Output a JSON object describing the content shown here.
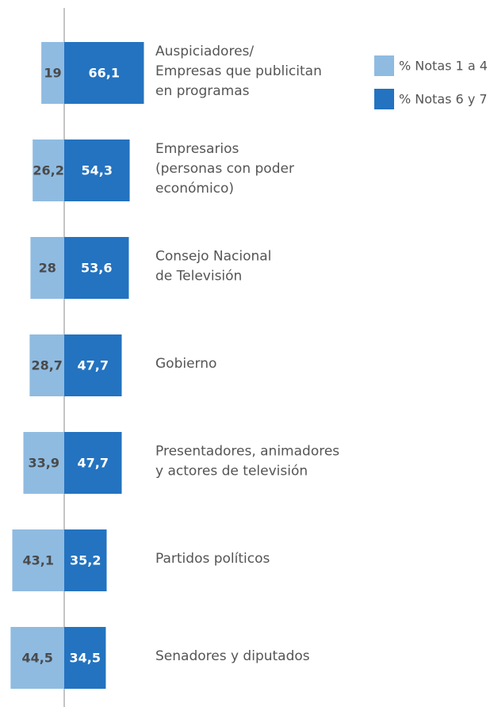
{
  "chart_data": {
    "type": "diverging-bar",
    "categories": [
      [
        "Auspiciadores/",
        "Empresas que publicitan",
        "en programas"
      ],
      [
        "Empresarios",
        "(personas con poder",
        "económico)"
      ],
      [
        "Consejo Nacional",
        "de Televisión"
      ],
      [
        "Gobierno"
      ],
      [
        "Presentadores, animadores",
        "y actores de televisión"
      ],
      [
        "Partidos políticos"
      ],
      [
        "Senadores y diputados"
      ]
    ],
    "series": [
      {
        "name": "% Notas 1 a 4",
        "color": "#8fbbe1",
        "side": "left",
        "values": [
          19,
          26.2,
          28,
          28.7,
          33.9,
          43.1,
          44.5
        ],
        "value_labels": [
          "19",
          "26,2",
          "28",
          "28,7",
          "33,9",
          "43,1",
          "44,5"
        ]
      },
      {
        "name": "% Notas 6 y 7",
        "color": "#2373c0",
        "side": "right",
        "values": [
          66.1,
          54.3,
          53.6,
          47.7,
          47.7,
          35.2,
          34.5
        ],
        "value_labels": [
          "66,1",
          "54,3",
          "53,6",
          "47,7",
          "47,7",
          "35,2",
          "34,5"
        ]
      }
    ],
    "xlim": [
      -50,
      70
    ],
    "legend": "top-right"
  }
}
